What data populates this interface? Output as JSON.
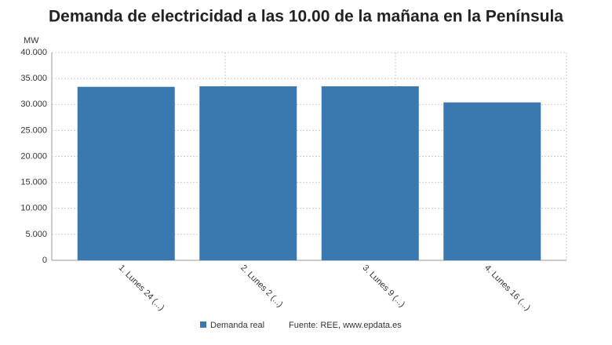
{
  "chart_data": {
    "type": "bar",
    "title": "Demanda de electricidad a las 10.00 de la mañana en la Península",
    "y_label": "MW",
    "categories": [
      "1. Lunes 24 (...)",
      "2. Lunes 2 (...)",
      "3. Lunes 9 (...)",
      "4. Lunes 16 (...)"
    ],
    "series": [
      {
        "name": "Demanda real",
        "color": "#3a78b0",
        "values": [
          33400,
          33500,
          33500,
          30400
        ]
      }
    ],
    "ylim": [
      0,
      40000
    ],
    "yticks": [
      0,
      {
        "value": 5000,
        "label": "5.000"
      },
      {
        "value": 10000,
        "label": "10.000"
      },
      {
        "value": 15000,
        "label": "15.000"
      },
      {
        "value": 20000,
        "label": "20.000"
      },
      {
        "value": 25000,
        "label": "25.000"
      },
      {
        "value": 30000,
        "label": "30.000"
      },
      {
        "value": 35000,
        "label": "35.000"
      },
      {
        "value": 40000,
        "label": "40.000"
      }
    ],
    "grid": true,
    "source": "Fuente: REE, www.epdata.es"
  }
}
